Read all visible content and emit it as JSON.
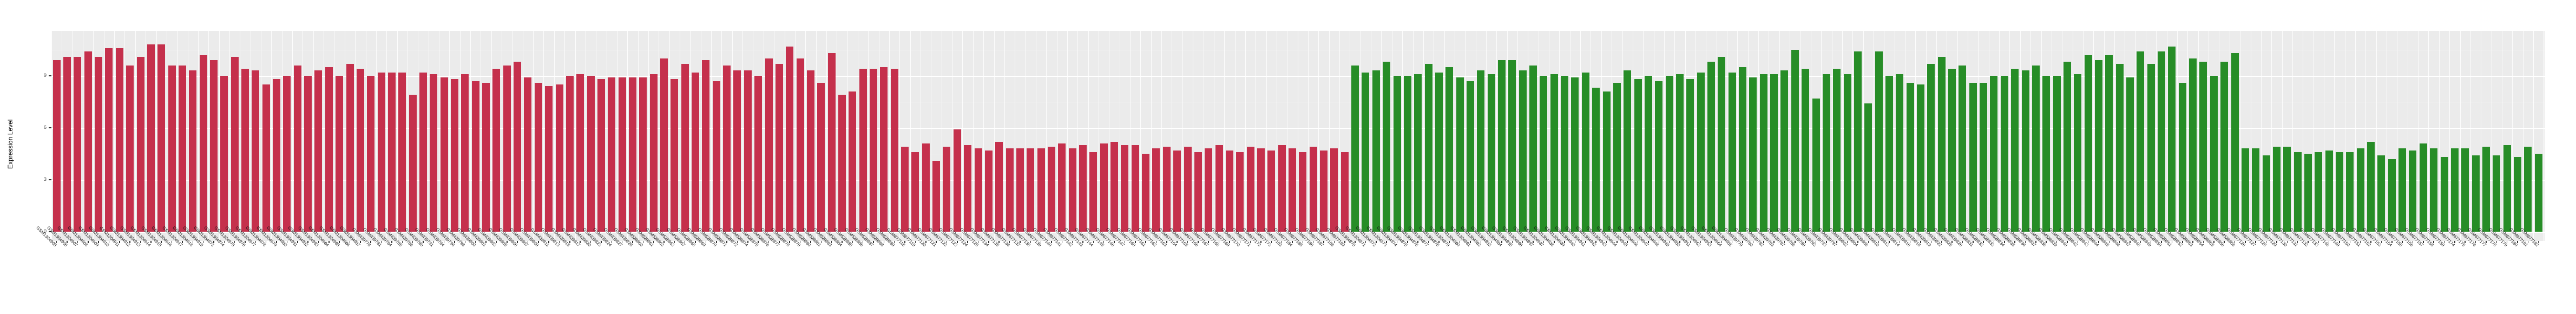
{
  "chart_data": {
    "type": "bar",
    "title": "",
    "xlabel": "",
    "ylabel": "Expression Level",
    "yticks": [
      0,
      3,
      6,
      9
    ],
    "yticks_minor": [
      1.5,
      4.5,
      7.5,
      10.5
    ],
    "ylim": [
      0,
      11.6
    ],
    "grid": "on",
    "legend": "none",
    "panel_bg": "#ebebeb",
    "bar_groups": [
      {
        "name": "group-red",
        "color": "#c5304c",
        "count": 124
      },
      {
        "name": "group-green",
        "color": "#278d27",
        "count": 114
      }
    ],
    "categories": [
      "GSM1304905",
      "GSM1304906",
      "GSM1304907",
      "GSM1304908",
      "GSM1304909",
      "GSM1304910",
      "GSM1304911",
      "GSM1304912",
      "GSM1304913",
      "GSM1304914",
      "GSM1304915",
      "GSM1304916",
      "GSM1304917",
      "GSM1304918",
      "GSM1304919",
      "GSM1304973",
      "GSM1304974",
      "GSM1304975",
      "GSM1304976",
      "GSM1304977",
      "GSM1304978",
      "GSM1304979",
      "GSM1304980",
      "GSM1304981",
      "GSM1304982",
      "GSM1304983",
      "GSM1304984",
      "GSM1304985",
      "GSM1304986",
      "GSM1304987",
      "GSM439778",
      "GSM439781",
      "GSM439784",
      "GSM439785",
      "GSM439786",
      "GSM439790",
      "GSM439791",
      "GSM439794",
      "GSM439796",
      "GSM439798",
      "GSM439800",
      "GSM439801",
      "GSM439803",
      "GSM439805",
      "GSM439806",
      "GSM439807",
      "GSM439809",
      "GSM439811",
      "GSM439813",
      "GSM439815",
      "GSM439817",
      "GSM439820",
      "GSM439823",
      "GSM439824",
      "GSM439827",
      "GSM439828",
      "GSM528860",
      "GSM528861",
      "GSM528862",
      "GSM528863",
      "GSM528867",
      "GSM528868",
      "GSM528869",
      "GSM528870",
      "GSM528871",
      "GSM528872",
      "GSM528874",
      "GSM528875",
      "GSM528876",
      "GSM528877",
      "GSM528878",
      "GSM528879",
      "GSM528880",
      "GSM528881",
      "GSM528883",
      "GSM528884",
      "GSM528885",
      "GSM528886",
      "GSM528887",
      "GSM528888",
      "GSM528889",
      "GSM677118",
      "GSM677119",
      "GSM677120",
      "GSM677121",
      "GSM677122",
      "GSM677123",
      "GSM677124",
      "GSM677125",
      "GSM677134",
      "GSM677135",
      "GSM677136",
      "GSM677137",
      "GSM677138",
      "GSM677139",
      "GSM677140",
      "GSM677141",
      "GSM677142",
      "GSM677143",
      "GSM677144",
      "GSM677145",
      "GSM677146",
      "GSM677147",
      "GSM677160",
      "GSM677161",
      "GSM677162",
      "GSM677163",
      "GSM677164",
      "GSM677165",
      "GSM677166",
      "GSM677167",
      "GSM677168",
      "GSM677169",
      "GSM677170",
      "GSM677171",
      "GSM677172",
      "GSM677173",
      "GSM677183",
      "GSM677184",
      "GSM677185",
      "GSM677186",
      "GSM677187",
      "GSM677188",
      "GSM677189",
      "GSM1304870",
      "GSM1304871",
      "GSM1304872",
      "GSM1304873",
      "GSM1304874",
      "GSM1304875",
      "GSM1304876",
      "GSM1304877",
      "GSM1304878",
      "GSM1304879",
      "GSM1304880",
      "GSM1304881",
      "GSM1304882",
      "GSM1304883",
      "GSM1304884",
      "GSM1304885",
      "GSM1304886",
      "GSM1304887",
      "GSM1304937",
      "GSM1304938",
      "GSM1304939",
      "GSM1304940",
      "GSM1304941",
      "GSM1304942",
      "GSM1304943",
      "GSM1304944",
      "GSM1304945",
      "GSM1304946",
      "GSM1304947",
      "GSM1304948",
      "GSM1304949",
      "GSM1304950",
      "GSM1304951",
      "GSM1304952",
      "GSM1304953",
      "GSM1304954",
      "GSM1304955",
      "GSM439779",
      "GSM439780",
      "GSM439782",
      "GSM439783",
      "GSM439787",
      "GSM439788",
      "GSM439789",
      "GSM439792",
      "GSM439793",
      "GSM439797",
      "GSM439802",
      "GSM439804",
      "GSM439808",
      "GSM439810",
      "GSM439812",
      "GSM439814",
      "GSM439816",
      "GSM439818",
      "GSM439819",
      "GSM439822",
      "GSM439825",
      "GSM439826",
      "GSM528831",
      "GSM528832",
      "GSM528833",
      "GSM528834",
      "GSM528835",
      "GSM528836",
      "GSM528837",
      "GSM528838",
      "GSM528839",
      "GSM528840",
      "GSM528842",
      "GSM528843",
      "GSM528844",
      "GSM528845",
      "GSM528846",
      "GSM528847",
      "GSM528848",
      "GSM528849",
      "GSM528850",
      "GSM528851",
      "GSM528852",
      "GSM528853",
      "GSM528854",
      "GSM528855",
      "GSM528856",
      "GSM528858",
      "GSM677126",
      "GSM677127",
      "GSM677128",
      "GSM677129",
      "GSM677130",
      "GSM677131",
      "GSM677132",
      "GSM677133",
      "GSM677148",
      "GSM677149",
      "GSM677150",
      "GSM677151",
      "GSM677152",
      "GSM677153",
      "GSM677154",
      "GSM677155",
      "GSM677156",
      "GSM677157",
      "GSM677158",
      "GSM677159",
      "GSM677174",
      "GSM677175",
      "GSM677176",
      "GSM677177",
      "GSM677178",
      "GSM677179",
      "GSM677180",
      "GSM677181",
      "GSM677182"
    ],
    "values": [
      9.9,
      10.1,
      10.1,
      10.4,
      10.1,
      10.6,
      10.6,
      9.6,
      10.1,
      10.8,
      10.8,
      9.6,
      9.6,
      9.3,
      10.2,
      9.9,
      9.0,
      10.1,
      9.4,
      9.3,
      8.5,
      8.8,
      9.0,
      9.6,
      9.0,
      9.3,
      9.5,
      9.0,
      9.7,
      9.4,
      9.0,
      9.2,
      9.2,
      9.2,
      7.9,
      9.2,
      9.1,
      8.9,
      8.8,
      9.1,
      8.7,
      8.6,
      9.4,
      9.6,
      9.8,
      8.9,
      8.6,
      8.4,
      8.5,
      9.0,
      9.1,
      9.0,
      8.8,
      8.9,
      8.9,
      8.9,
      8.9,
      9.1,
      10.0,
      8.8,
      9.7,
      9.2,
      9.9,
      8.7,
      9.6,
      9.3,
      9.3,
      9.0,
      10.0,
      9.7,
      10.7,
      10.0,
      9.3,
      8.6,
      10.3,
      7.9,
      8.1,
      9.4,
      9.4,
      9.5,
      9.4,
      4.9,
      4.6,
      5.1,
      4.1,
      4.9,
      5.9,
      5.0,
      4.8,
      4.7,
      5.2,
      4.8,
      4.8,
      4.8,
      4.8,
      4.9,
      5.1,
      4.8,
      5.0,
      4.6,
      5.1,
      5.2,
      5.0,
      5.0,
      4.5,
      4.8,
      4.9,
      4.7,
      4.9,
      4.6,
      4.8,
      5.0,
      4.7,
      4.6,
      4.9,
      4.8,
      4.7,
      5.0,
      4.8,
      4.6,
      4.9,
      4.7,
      4.8,
      4.6,
      9.6,
      9.2,
      9.3,
      9.8,
      9.0,
      9.0,
      9.1,
      9.7,
      9.2,
      9.5,
      8.9,
      8.7,
      9.3,
      9.1,
      9.9,
      9.9,
      9.3,
      9.6,
      9.0,
      9.1,
      9.0,
      8.9,
      9.2,
      8.3,
      8.1,
      8.6,
      9.3,
      8.8,
      9.0,
      8.7,
      9.0,
      9.1,
      8.8,
      9.2,
      9.8,
      10.1,
      9.2,
      9.5,
      8.9,
      9.1,
      9.1,
      9.3,
      10.5,
      9.4,
      7.7,
      9.1,
      9.4,
      9.1,
      10.4,
      7.4,
      10.4,
      9.0,
      9.1,
      8.6,
      8.5,
      9.7,
      10.1,
      9.4,
      9.6,
      8.6,
      8.6,
      9.0,
      9.0,
      9.4,
      9.3,
      9.6,
      9.0,
      9.0,
      9.8,
      9.1,
      10.2,
      9.9,
      10.2,
      9.7,
      8.9,
      10.4,
      9.7,
      10.4,
      10.7,
      8.6,
      10.0,
      9.8,
      9.0,
      9.8,
      10.3,
      4.8,
      4.8,
      4.4,
      4.9,
      4.9,
      4.6,
      4.5,
      4.6,
      4.7,
      4.6,
      4.6,
      4.8,
      5.2,
      4.4,
      4.2,
      4.8,
      4.7,
      5.1,
      4.8,
      4.3,
      4.8,
      4.8,
      4.4,
      4.9,
      4.4,
      5.0,
      4.3,
      4.9,
      4.5
    ]
  }
}
